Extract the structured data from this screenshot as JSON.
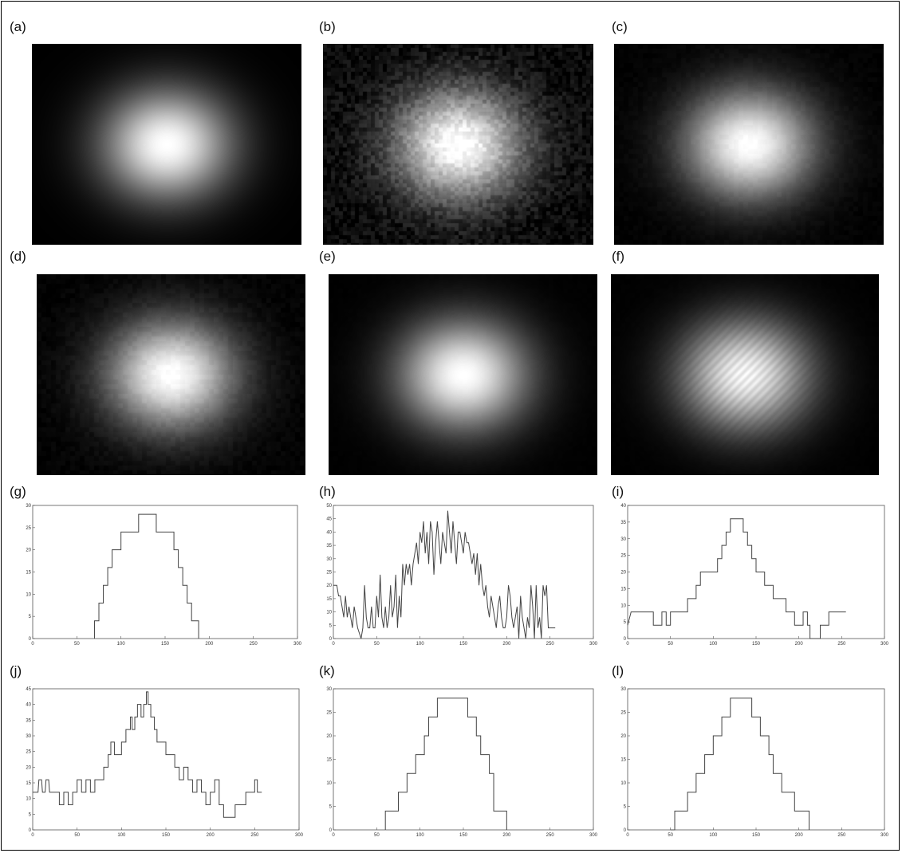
{
  "panels": {
    "a": {
      "label": "(a)"
    },
    "b": {
      "label": "(b)"
    },
    "c": {
      "label": "(c)"
    },
    "d": {
      "label": "(d)"
    },
    "e": {
      "label": "(e)"
    },
    "f": {
      "label": "(f)"
    },
    "g": {
      "label": "(g)"
    },
    "h": {
      "label": "(h)"
    },
    "i": {
      "label": "(i)"
    },
    "j": {
      "label": "(j)"
    },
    "k": {
      "label": "(k)"
    },
    "l": {
      "label": "(l)"
    }
  },
  "images": [
    {
      "id": "a",
      "description_kind": "gaussian-spot",
      "noise": 0.0,
      "blur": 0,
      "artifact": false
    },
    {
      "id": "b",
      "description_kind": "gaussian-spot",
      "noise": 0.45,
      "blur": 0,
      "artifact": false
    },
    {
      "id": "c",
      "description_kind": "gaussian-spot",
      "noise": 0.08,
      "blur": 1,
      "artifact": false
    },
    {
      "id": "d",
      "description_kind": "gaussian-spot",
      "noise": 0.12,
      "blur": 1,
      "artifact": false
    },
    {
      "id": "e",
      "description_kind": "gaussian-spot",
      "noise": 0.02,
      "blur": 1,
      "artifact": false
    },
    {
      "id": "f",
      "description_kind": "gaussian-spot",
      "noise": 0.02,
      "blur": 1,
      "artifact": true
    }
  ],
  "chart_data": [
    {
      "id": "g",
      "type": "line",
      "xlim": [
        0,
        300
      ],
      "ylim": [
        0,
        30
      ],
      "xticks": [
        0,
        50,
        100,
        150,
        200,
        250,
        300
      ],
      "yticks": [
        0,
        5,
        10,
        15,
        20,
        25,
        30
      ],
      "x": [
        70,
        70,
        75,
        75,
        80,
        80,
        85,
        85,
        90,
        90,
        95,
        95,
        100,
        100,
        110,
        110,
        120,
        120,
        130,
        130,
        140,
        140,
        150,
        150,
        160,
        160,
        165,
        165,
        170,
        170,
        175,
        175,
        180,
        180,
        188,
        188
      ],
      "y": [
        0,
        4,
        4,
        8,
        8,
        12,
        12,
        16,
        16,
        20,
        20,
        20,
        20,
        24,
        24,
        24,
        24,
        28,
        28,
        28,
        28,
        24,
        24,
        24,
        24,
        20,
        20,
        16,
        16,
        12,
        12,
        8,
        8,
        4,
        4,
        0
      ]
    },
    {
      "id": "h",
      "type": "line",
      "xlim": [
        0,
        300
      ],
      "ylim": [
        0,
        50
      ],
      "xticks": [
        0,
        50,
        100,
        150,
        200,
        250,
        300
      ],
      "yticks": [
        0,
        5,
        10,
        15,
        20,
        25,
        30,
        35,
        40,
        45,
        50
      ],
      "x": [
        0,
        4,
        6,
        8,
        10,
        12,
        14,
        16,
        18,
        20,
        22,
        24,
        26,
        28,
        32,
        34,
        36,
        38,
        40,
        42,
        44,
        46,
        48,
        50,
        52,
        54,
        56,
        58,
        60,
        62,
        64,
        66,
        68,
        70,
        72,
        74,
        76,
        78,
        80,
        82,
        84,
        86,
        88,
        90,
        92,
        94,
        96,
        98,
        100,
        102,
        104,
        106,
        108,
        110,
        112,
        114,
        116,
        118,
        120,
        122,
        124,
        126,
        128,
        130,
        132,
        134,
        136,
        138,
        140,
        142,
        144,
        146,
        148,
        150,
        152,
        154,
        156,
        158,
        160,
        162,
        164,
        166,
        168,
        170,
        172,
        174,
        176,
        178,
        180,
        182,
        184,
        186,
        188,
        190,
        192,
        194,
        196,
        198,
        200,
        202,
        204,
        206,
        208,
        210,
        212,
        214,
        216,
        218,
        220,
        222,
        224,
        226,
        228,
        230,
        232,
        234,
        236,
        238,
        240,
        242,
        244,
        246,
        248,
        250,
        252,
        254,
        256
      ],
      "y": [
        20,
        20,
        16,
        16,
        12,
        8,
        16,
        8,
        12,
        8,
        4,
        12,
        8,
        4,
        0,
        4,
        20,
        8,
        4,
        4,
        12,
        4,
        4,
        16,
        8,
        24,
        8,
        4,
        12,
        4,
        8,
        20,
        8,
        12,
        24,
        4,
        16,
        8,
        28,
        20,
        28,
        24,
        28,
        20,
        28,
        32,
        36,
        28,
        40,
        36,
        44,
        32,
        40,
        28,
        44,
        40,
        24,
        36,
        44,
        36,
        28,
        40,
        36,
        32,
        48,
        40,
        32,
        44,
        36,
        28,
        40,
        40,
        36,
        32,
        40,
        36,
        36,
        32,
        28,
        32,
        24,
        32,
        20,
        28,
        20,
        16,
        20,
        12,
        8,
        16,
        12,
        8,
        4,
        12,
        16,
        8,
        4,
        4,
        8,
        20,
        16,
        8,
        4,
        8,
        12,
        0,
        16,
        8,
        4,
        0,
        8,
        4,
        20,
        12,
        0,
        20,
        4,
        8,
        0,
        20,
        16,
        20,
        4,
        4,
        4,
        4,
        4
      ]
    },
    {
      "id": "i",
      "type": "line",
      "xlim": [
        0,
        300
      ],
      "ylim": [
        0,
        40
      ],
      "xticks": [
        0,
        50,
        100,
        150,
        200,
        250,
        300
      ],
      "yticks": [
        0,
        5,
        10,
        15,
        20,
        25,
        30,
        35,
        40
      ],
      "x": [
        0,
        4,
        6,
        30,
        30,
        40,
        40,
        45,
        45,
        50,
        50,
        55,
        55,
        60,
        60,
        70,
        70,
        80,
        80,
        85,
        85,
        90,
        90,
        105,
        105,
        110,
        110,
        115,
        115,
        120,
        120,
        125,
        125,
        135,
        135,
        140,
        140,
        145,
        145,
        150,
        150,
        160,
        160,
        170,
        170,
        180,
        180,
        185,
        185,
        195,
        195,
        200,
        200,
        205,
        205,
        210,
        210,
        213,
        213,
        218,
        218,
        225,
        225,
        235,
        235,
        245,
        245,
        255
      ],
      "y": [
        4,
        8,
        8,
        8,
        4,
        4,
        8,
        8,
        4,
        4,
        8,
        8,
        8,
        8,
        8,
        8,
        12,
        12,
        16,
        16,
        20,
        20,
        20,
        20,
        24,
        24,
        28,
        28,
        32,
        32,
        36,
        36,
        36,
        36,
        32,
        32,
        28,
        28,
        24,
        24,
        20,
        20,
        16,
        16,
        12,
        12,
        12,
        12,
        8,
        8,
        4,
        4,
        4,
        4,
        8,
        8,
        4,
        4,
        0,
        0,
        0,
        0,
        4,
        4,
        8,
        8,
        8,
        8
      ]
    },
    {
      "id": "j",
      "type": "line",
      "xlim": [
        0,
        300
      ],
      "ylim": [
        0,
        45
      ],
      "xticks": [
        0,
        50,
        100,
        150,
        200,
        250,
        300
      ],
      "yticks": [
        0,
        5,
        10,
        15,
        20,
        25,
        30,
        35,
        40,
        45
      ],
      "x": [
        0,
        6,
        7,
        10,
        11,
        14,
        15,
        18,
        19,
        22,
        22,
        30,
        30,
        35,
        35,
        40,
        40,
        45,
        45,
        50,
        50,
        55,
        55,
        60,
        60,
        65,
        65,
        70,
        70,
        80,
        80,
        85,
        85,
        88,
        88,
        92,
        92,
        100,
        100,
        105,
        105,
        110,
        110,
        112,
        112,
        115,
        115,
        118,
        118,
        122,
        122,
        125,
        125,
        128,
        128,
        130,
        130,
        133,
        133,
        137,
        137,
        140,
        140,
        150,
        150,
        160,
        160,
        165,
        165,
        170,
        170,
        175,
        175,
        180,
        180,
        185,
        185,
        190,
        190,
        195,
        195,
        200,
        200,
        205,
        205,
        210,
        210,
        215,
        215,
        220,
        220,
        228,
        228,
        240,
        240,
        245,
        245,
        250,
        250,
        253,
        253,
        258
      ],
      "y": [
        12,
        12,
        16,
        16,
        12,
        12,
        16,
        16,
        12,
        12,
        12,
        12,
        8,
        8,
        12,
        12,
        8,
        8,
        12,
        12,
        16,
        16,
        12,
        12,
        16,
        16,
        12,
        12,
        16,
        16,
        20,
        20,
        24,
        24,
        28,
        28,
        24,
        24,
        28,
        28,
        32,
        32,
        36,
        36,
        32,
        32,
        36,
        36,
        40,
        40,
        36,
        36,
        40,
        40,
        44,
        44,
        40,
        40,
        36,
        36,
        32,
        32,
        28,
        28,
        24,
        24,
        20,
        20,
        16,
        16,
        20,
        20,
        16,
        16,
        12,
        12,
        16,
        16,
        12,
        12,
        8,
        8,
        12,
        12,
        16,
        16,
        8,
        8,
        4,
        4,
        4,
        4,
        8,
        8,
        12,
        12,
        12,
        12,
        16,
        16,
        12,
        12
      ]
    },
    {
      "id": "k",
      "type": "line",
      "xlim": [
        0,
        300
      ],
      "ylim": [
        0,
        30
      ],
      "xticks": [
        0,
        50,
        100,
        150,
        200,
        250,
        300
      ],
      "yticks": [
        0,
        5,
        10,
        15,
        20,
        25,
        30
      ],
      "x": [
        60,
        60,
        75,
        75,
        85,
        85,
        95,
        95,
        105,
        105,
        110,
        110,
        120,
        120,
        155,
        155,
        165,
        165,
        170,
        170,
        180,
        180,
        185,
        185,
        200,
        200
      ],
      "y": [
        0,
        4,
        4,
        8,
        8,
        12,
        12,
        16,
        16,
        20,
        20,
        24,
        24,
        28,
        28,
        24,
        24,
        20,
        20,
        16,
        16,
        12,
        12,
        4,
        4,
        0
      ]
    },
    {
      "id": "l",
      "type": "line",
      "xlim": [
        0,
        300
      ],
      "ylim": [
        0,
        30
      ],
      "xticks": [
        0,
        50,
        100,
        150,
        200,
        250,
        300
      ],
      "yticks": [
        0,
        5,
        10,
        15,
        20,
        25,
        30
      ],
      "x": [
        50,
        50,
        55,
        55,
        70,
        70,
        80,
        80,
        90,
        90,
        100,
        100,
        110,
        110,
        120,
        120,
        145,
        145,
        155,
        155,
        165,
        165,
        170,
        170,
        180,
        180,
        195,
        195,
        212,
        212
      ],
      "y": [
        0,
        0,
        0,
        4,
        4,
        8,
        8,
        12,
        12,
        16,
        16,
        20,
        20,
        24,
        24,
        28,
        28,
        24,
        24,
        20,
        20,
        16,
        16,
        12,
        12,
        8,
        8,
        4,
        4,
        0
      ]
    }
  ]
}
